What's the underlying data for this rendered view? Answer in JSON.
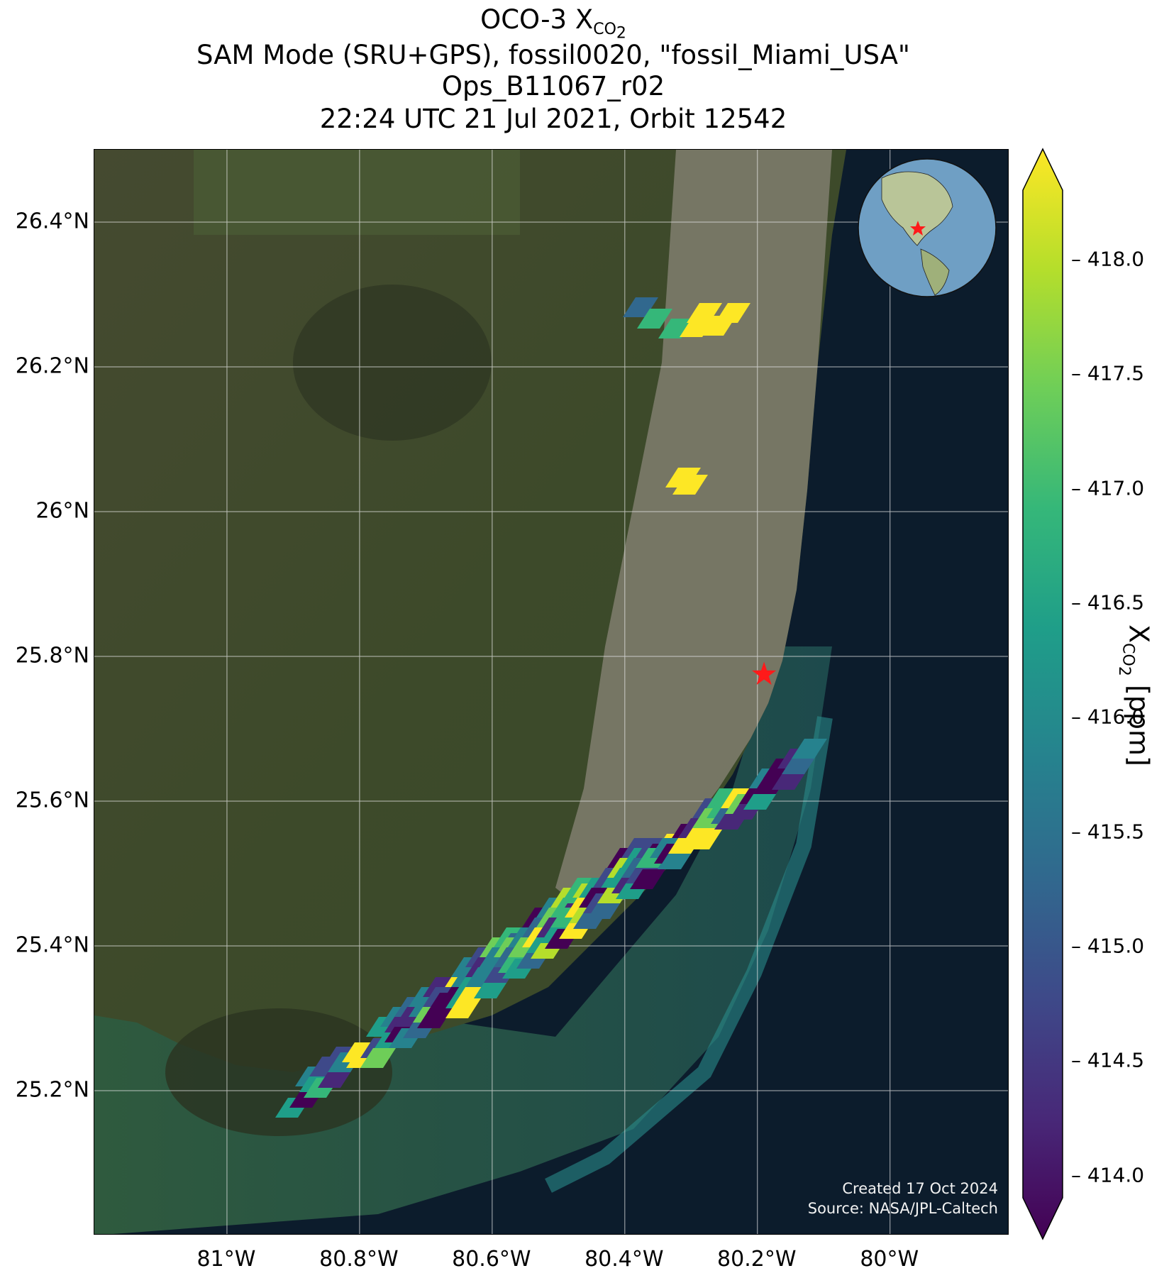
{
  "title": {
    "line1_prefix": "OCO-3 X",
    "line1_sub": "CO",
    "line1_subsub": "2",
    "line2": "SAM Mode (SRU+GPS), fossil0020, \"fossil_Miami_USA\"",
    "line3": "Ops_B11067_r02",
    "line4": "22:24 UTC 21 Jul 2021, Orbit 12542"
  },
  "axes": {
    "lat_ticks": [
      "26.4°N",
      "26.2°N",
      "26°N",
      "25.8°N",
      "25.6°N",
      "25.4°N",
      "25.2°N"
    ],
    "lat_values": [
      26.4,
      26.2,
      26.0,
      25.8,
      25.6,
      25.4,
      25.2
    ],
    "lon_ticks": [
      "81°W",
      "80.8°W",
      "80.6°W",
      "80.4°W",
      "80.2°W",
      "80°W"
    ],
    "lon_values": [
      -81.0,
      -80.8,
      -80.6,
      -80.4,
      -80.2,
      -80.0
    ],
    "lat_range": [
      25.0,
      26.5
    ],
    "lon_range": [
      -81.2,
      -79.82
    ],
    "grid": true
  },
  "credits": {
    "created": "Created 17 Oct 2024",
    "source": "Source: NASA/JPL-Caltech"
  },
  "colorbar": {
    "label_prefix": "X",
    "label_sub": "CO",
    "label_subsub": "2",
    "label_suffix": " [ppm]",
    "ticks": [
      "418.0",
      "417.5",
      "417.0",
      "416.5",
      "416.0",
      "415.5",
      "415.0",
      "414.5",
      "414.0"
    ],
    "tick_values": [
      418.0,
      417.5,
      417.0,
      416.5,
      416.0,
      415.5,
      415.0,
      414.5,
      414.0
    ],
    "range": [
      413.9,
      418.3
    ],
    "colormap": "viridis",
    "extend": "both"
  },
  "target": {
    "name": "fossil_Miami_USA",
    "lon": -80.19,
    "lat": 25.775,
    "marker": "red-star"
  },
  "colors": {
    "viridis": [
      "#440154",
      "#482878",
      "#3e4989",
      "#31688e",
      "#26828e",
      "#1f9e89",
      "#35b779",
      "#6ece58",
      "#b5de2b",
      "#fde725"
    ],
    "land": "#3f4a2c",
    "ocean": "#0c1c2c",
    "urban": "#8a8678",
    "target": "#ff1a1a"
  }
}
